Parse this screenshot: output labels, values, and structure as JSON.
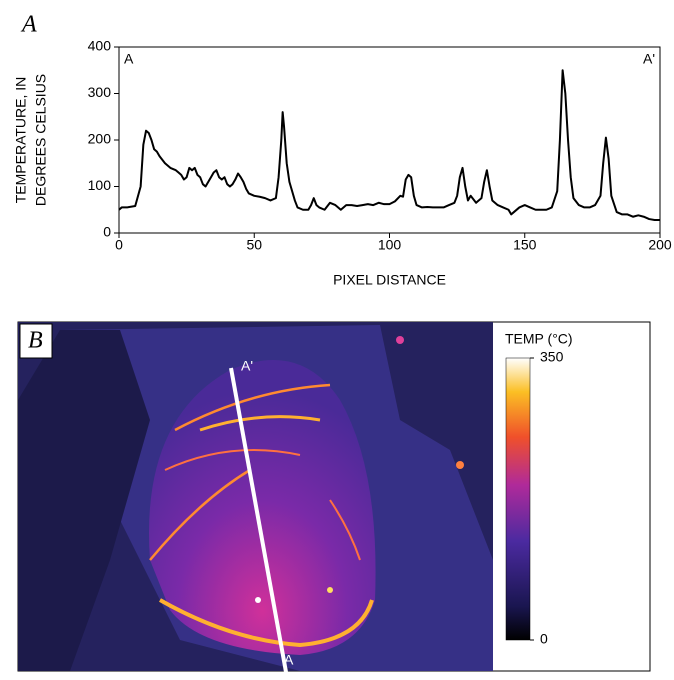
{
  "panel_labels": [
    "A",
    "B"
  ],
  "chart_data": {
    "type": "line",
    "y_label": [
      "TEMPERATURE, IN",
      "DEGREES CELSIUS"
    ],
    "x_label": "PIXEL DISTANCE",
    "annotations": [
      "A",
      "A'"
    ],
    "color": "#000000",
    "x": [
      0,
      1,
      3,
      6,
      8,
      9,
      10,
      11,
      12,
      13,
      14,
      15,
      17,
      19,
      21,
      22,
      23,
      24,
      25,
      26,
      27,
      28,
      29,
      30,
      31,
      32,
      33,
      34,
      35,
      36,
      37,
      38,
      39,
      40,
      41,
      42,
      43,
      44,
      45,
      46,
      47,
      48,
      50,
      52,
      54,
      56,
      58,
      59,
      60,
      60.5,
      61,
      62,
      63,
      64,
      65,
      66,
      68,
      70,
      71,
      72,
      73,
      74,
      76,
      78,
      80,
      82,
      84,
      86,
      88,
      90,
      92,
      94,
      96,
      98,
      100,
      102,
      104,
      105,
      106,
      107,
      108,
      109,
      110,
      112,
      114,
      116,
      118,
      120,
      122,
      124,
      125,
      126,
      127,
      128,
      129,
      130,
      132,
      134,
      135,
      136,
      137,
      138,
      140,
      142,
      144,
      145,
      146,
      148,
      150,
      152,
      154,
      156,
      158,
      160,
      162,
      163,
      164,
      165,
      166,
      167,
      168,
      170,
      172,
      174,
      176,
      178,
      179,
      180,
      181,
      182,
      184,
      186,
      188,
      190,
      192,
      194,
      196,
      198,
      200
    ],
    "values": [
      50,
      55,
      55,
      58,
      100,
      190,
      220,
      215,
      200,
      180,
      175,
      165,
      150,
      140,
      135,
      130,
      125,
      115,
      120,
      140,
      135,
      140,
      125,
      120,
      105,
      100,
      110,
      120,
      130,
      135,
      120,
      115,
      120,
      105,
      100,
      105,
      115,
      128,
      120,
      110,
      95,
      85,
      80,
      78,
      75,
      70,
      75,
      120,
      200,
      260,
      230,
      150,
      110,
      90,
      70,
      55,
      50,
      50,
      60,
      75,
      60,
      55,
      50,
      65,
      60,
      50,
      60,
      60,
      58,
      60,
      62,
      60,
      65,
      62,
      62,
      68,
      80,
      78,
      115,
      125,
      120,
      80,
      60,
      55,
      56,
      55,
      55,
      55,
      60,
      65,
      80,
      120,
      140,
      100,
      70,
      80,
      65,
      75,
      110,
      135,
      100,
      70,
      60,
      55,
      50,
      40,
      45,
      55,
      60,
      55,
      50,
      50,
      50,
      55,
      90,
      200,
      350,
      300,
      200,
      120,
      75,
      60,
      55,
      55,
      60,
      80,
      150,
      205,
      160,
      80,
      45,
      40,
      40,
      35,
      38,
      35,
      30,
      28,
      28
    ],
    "xlim": [
      0,
      200
    ],
    "ylim": [
      0,
      400
    ],
    "xticks": [
      0,
      50,
      100,
      150,
      200
    ],
    "yticks": [
      0,
      100,
      200,
      300,
      400
    ]
  },
  "thermal_image": {
    "line_labels": [
      "A'",
      "A"
    ],
    "colorbar": {
      "title": "TEMP (°C)",
      "lim": [
        0,
        350
      ],
      "ticks": [
        350,
        0
      ]
    }
  }
}
